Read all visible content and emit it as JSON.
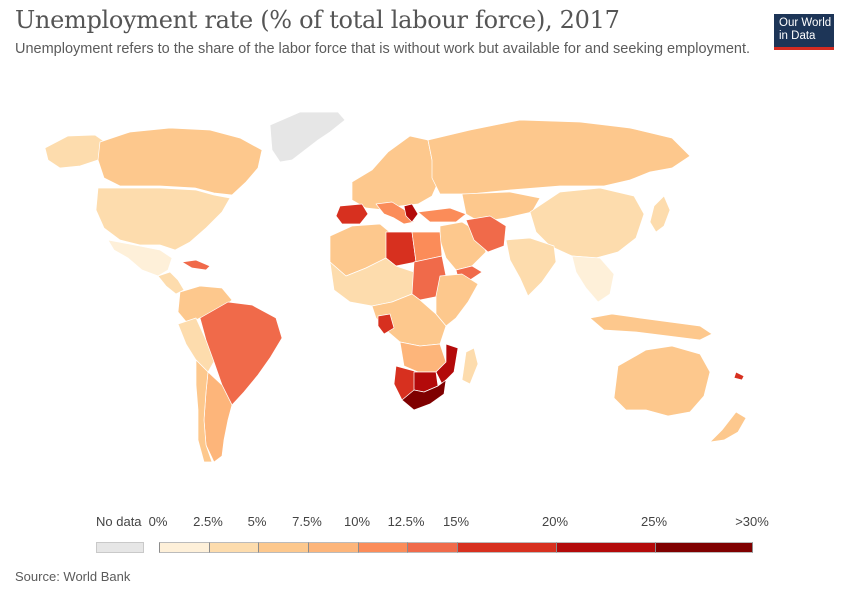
{
  "header": {
    "title": "Unemployment rate (% of total labour force), 2017",
    "subtitle": "Unemployment refers to the share of the labor force that is without work but available for and seeking employment."
  },
  "logo": {
    "line1": "Our World",
    "line2": "in Data",
    "bg_color": "#1d3557",
    "accent_color": "#d42b21"
  },
  "legend": {
    "no_data_label": "No data",
    "no_data_color": "#e6e6e6",
    "thresholds": [
      {
        "label": "0%",
        "value": 0
      },
      {
        "label": "2.5%",
        "value": 2.5
      },
      {
        "label": "5%",
        "value": 5
      },
      {
        "label": "7.5%",
        "value": 7.5
      },
      {
        "label": "10%",
        "value": 10
      },
      {
        "label": "12.5%",
        "value": 12.5
      },
      {
        "label": "15%",
        "value": 15
      },
      {
        "label": "20%",
        "value": 20
      },
      {
        "label": "25%",
        "value": 25
      },
      {
        "label": ">30%",
        "value": 30
      }
    ],
    "colors": [
      "#fef0d9",
      "#fddcad",
      "#fdc88d",
      "#fdb57a",
      "#fb8c59",
      "#f06a4a",
      "#d7301f",
      "#b30a0a",
      "#7f0000"
    ]
  },
  "source": "Source: World Bank"
}
